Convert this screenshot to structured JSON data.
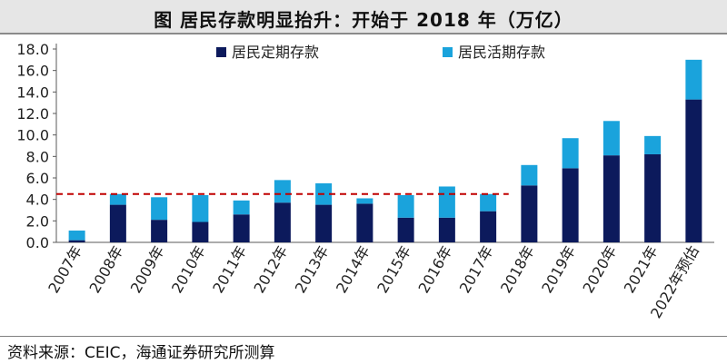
{
  "title": "图  居民存款明显抬升：开始于 2018 年（万亿）",
  "source": "资料来源：CEIC，海通证券研究所测算",
  "chart_data": {
    "type": "bar",
    "stacked": true,
    "categories": [
      "2007年",
      "2008年",
      "2009年",
      "2010年",
      "2011年",
      "2012年",
      "2013年",
      "2014年",
      "2015年",
      "2016年",
      "2017年",
      "2018年",
      "2019年",
      "2020年",
      "2021年",
      "2022年预估"
    ],
    "series": [
      {
        "name": "居民定期存款",
        "color": "#0c1a5c",
        "values": [
          0.2,
          3.5,
          2.1,
          1.9,
          2.6,
          3.7,
          3.5,
          3.6,
          2.3,
          2.3,
          2.9,
          5.3,
          6.9,
          8.1,
          8.2,
          13.3
        ]
      },
      {
        "name": "居民活期存款",
        "color": "#1aa3dc",
        "values": [
          0.9,
          1.0,
          2.1,
          2.5,
          1.3,
          2.1,
          2.0,
          0.5,
          2.1,
          2.9,
          1.6,
          1.9,
          2.8,
          3.2,
          1.7,
          3.7
        ]
      }
    ],
    "ylim": [
      0,
      18
    ],
    "yticks": [
      "0.0",
      "2.0",
      "4.0",
      "6.0",
      "8.0",
      "10.0",
      "12.0",
      "14.0",
      "16.0",
      "18.0"
    ],
    "reference_line": {
      "value": 4.5,
      "from_category": 0,
      "to_category": 10,
      "color": "#c00000",
      "style": "dashed"
    },
    "grid": false,
    "legend_placement": "top"
  }
}
